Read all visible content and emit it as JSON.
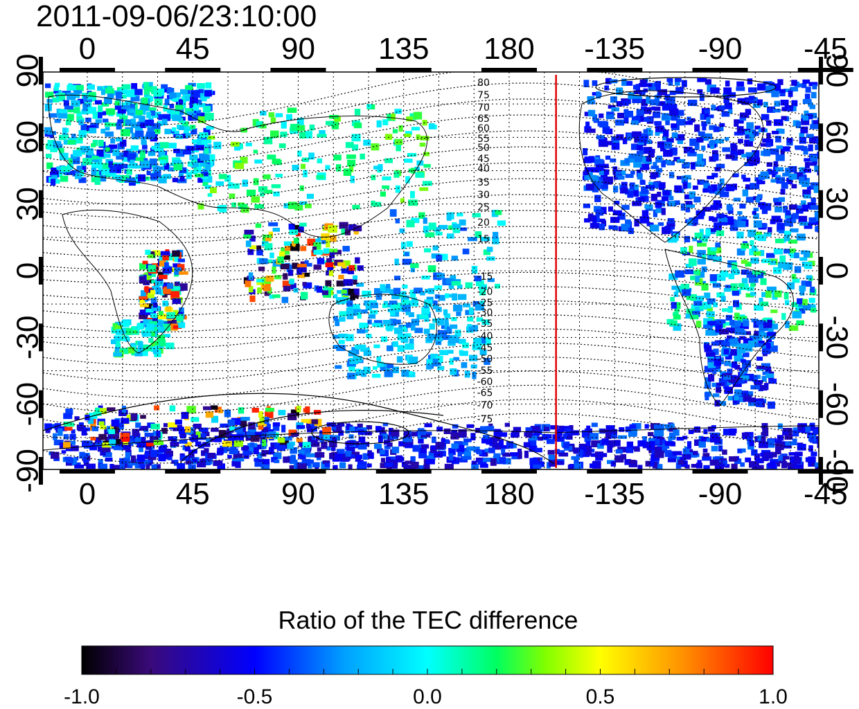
{
  "title": "2011-09-06/23:10:00",
  "map": {
    "lon_ticks": [
      "0",
      "45",
      "90",
      "135",
      "180",
      "-135",
      "-90",
      "-45"
    ],
    "lat_ticks": [
      "90",
      "60",
      "30",
      "0",
      "-30",
      "-60",
      "-90"
    ],
    "contour_labels_north": [
      "80",
      "75",
      "70",
      "65",
      "60",
      "55",
      "50",
      "45",
      "40",
      "35",
      "30",
      "25",
      "20",
      "15"
    ],
    "contour_labels_south": [
      "-15",
      "-20",
      "-25",
      "-30",
      "-35",
      "-40",
      "-45",
      "-50",
      "-55",
      "-60",
      "-65",
      "-70",
      "-75"
    ],
    "marker_line_lon": 200,
    "marker_line_color": "#e00000"
  },
  "colorbar": {
    "title": "Ratio of the TEC difference",
    "ticks": [
      "-1.0",
      "-0.5",
      "0.0",
      "0.5",
      "1.0"
    ],
    "min": -1.0,
    "max": 1.0,
    "colors": [
      "#000000",
      "#3a0a7a",
      "#0000ff",
      "#00a0ff",
      "#00ffff",
      "#00ff60",
      "#80ff00",
      "#ffff00",
      "#ff9000",
      "#ff0000"
    ]
  }
}
